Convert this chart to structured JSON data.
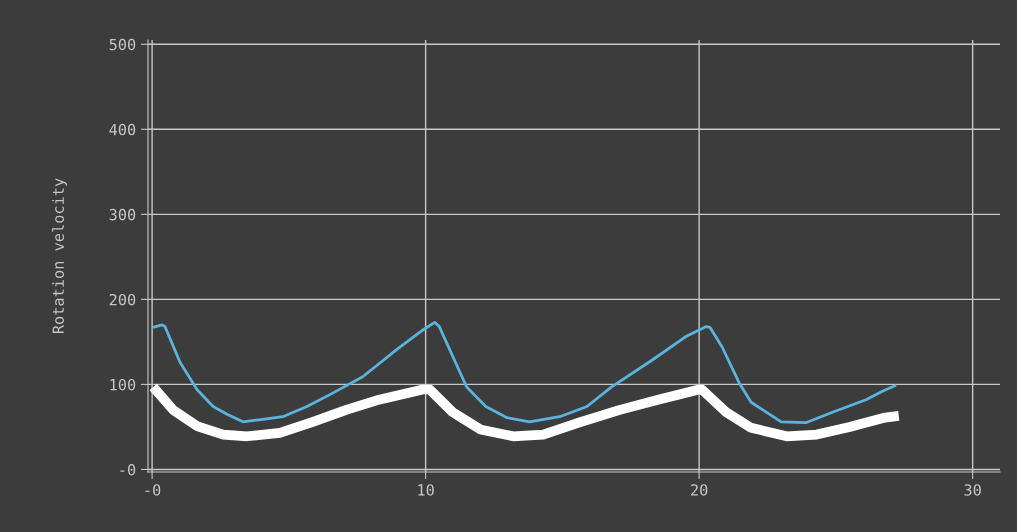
{
  "chart_data": {
    "type": "line",
    "ylabel": "Rotation velocity",
    "xlim": [
      -0.15,
      31
    ],
    "ylim": [
      -3,
      505
    ],
    "xticks": [
      {
        "value": 0,
        "label": "-0"
      },
      10,
      20,
      30
    ],
    "yticks": [
      {
        "value": 0,
        "label": "-0"
      },
      100,
      200,
      300,
      400,
      500
    ],
    "grid": true,
    "marker": "none",
    "line_style": "solid",
    "series": [
      {
        "color": "#5ab4de",
        "x": [
          0.04,
          0.36,
          0.47,
          1.02,
          1.64,
          2.23,
          2.74,
          3.32,
          4.05,
          4.78,
          5.66,
          6.5,
          7.7,
          8.94,
          9.9,
          10.33,
          10.5,
          11.5,
          12.2,
          12.96,
          13.8,
          14.9,
          15.9,
          16.8,
          18.3,
          19.5,
          20.26,
          20.4,
          20.84,
          21.46,
          21.9,
          23.0,
          23.9,
          24.85,
          26.1,
          26.7,
          27.2
        ],
        "values": [
          167,
          170,
          168,
          126,
          94,
          74,
          65,
          56,
          59,
          62,
          74,
          88,
          109,
          141,
          164,
          173,
          168,
          97,
          74,
          61,
          56,
          62,
          74,
          97,
          129,
          156,
          168,
          167,
          144,
          102,
          79,
          56,
          55,
          67,
          82,
          92,
          99
        ]
      },
      {
        "color": "#ffffff",
        "x": [
          0.04,
          0.77,
          1.64,
          2.6,
          3.47,
          4.67,
          5.88,
          7.1,
          8.3,
          9.9,
          10.15,
          11.0,
          12.0,
          13.2,
          14.3,
          15.6,
          17.1,
          18.5,
          20.0,
          20.1,
          21.0,
          21.9,
          23.2,
          24.3,
          25.5,
          26.8,
          27.3
        ],
        "values": [
          97,
          70,
          51,
          41,
          39,
          43,
          56,
          70,
          82,
          94,
          94,
          67,
          47,
          39,
          41,
          55,
          70,
          82,
          94,
          94,
          67,
          49,
          39,
          41,
          50,
          61,
          63
        ]
      }
    ]
  }
}
